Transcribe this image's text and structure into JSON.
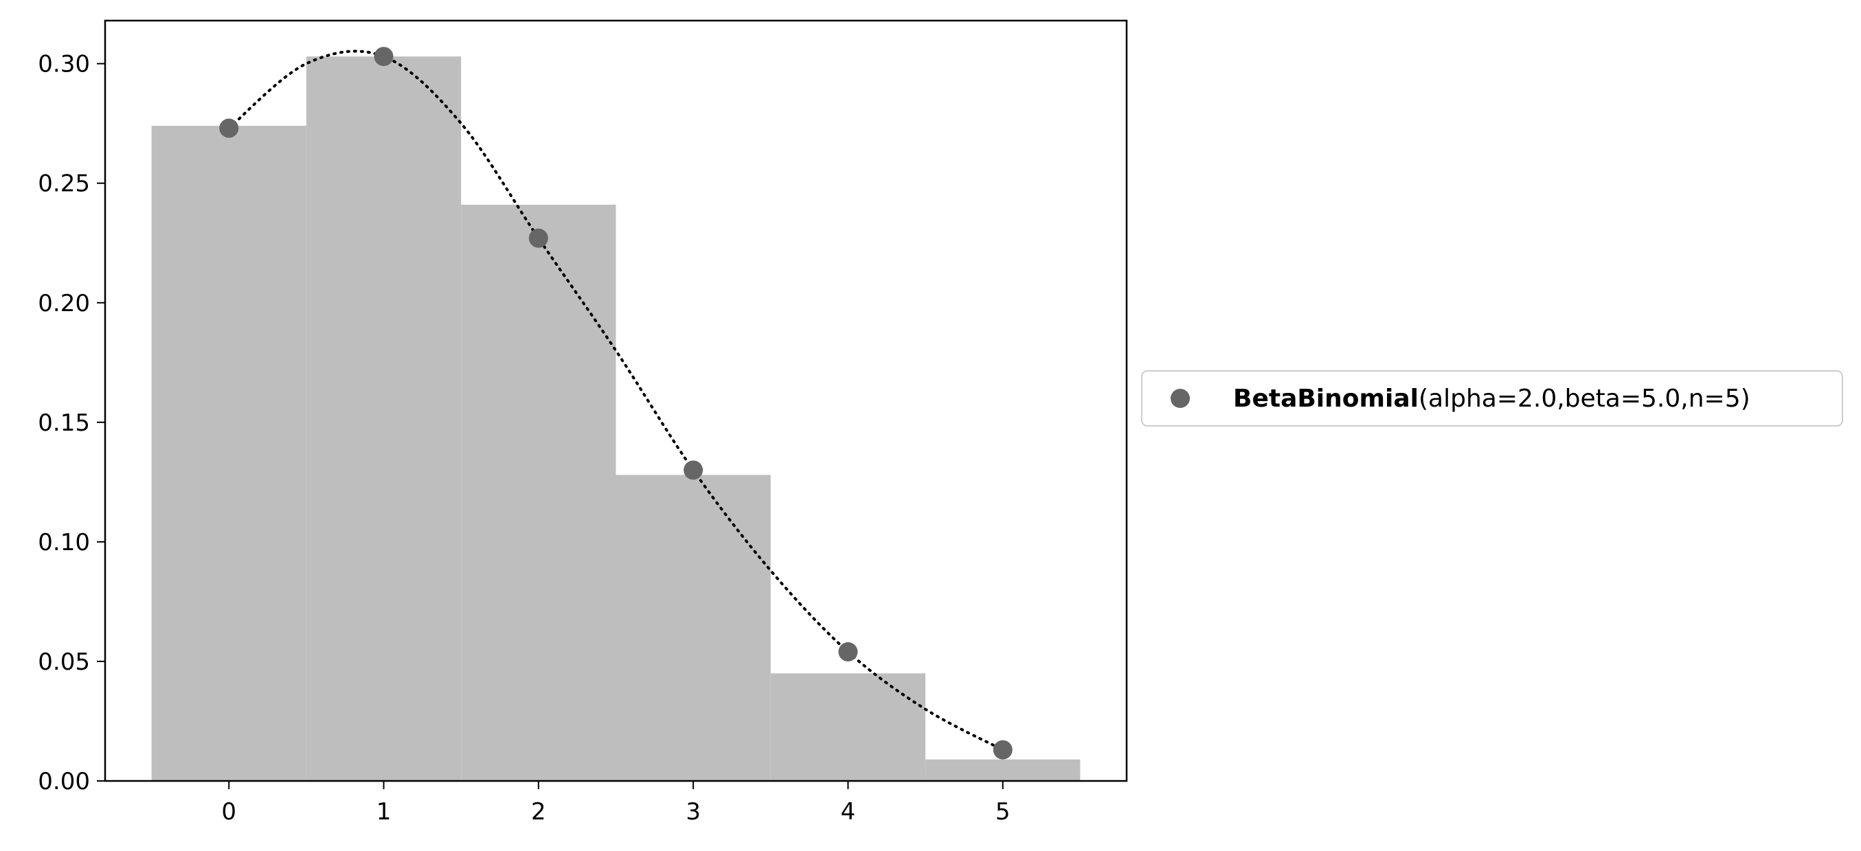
{
  "chart_data": {
    "type": "bar",
    "x": [
      0,
      1,
      2,
      3,
      4,
      5
    ],
    "series": [
      {
        "values": [
          0.274,
          0.303,
          0.241,
          0.128,
          0.045,
          0.009
        ]
      },
      {
        "name": "BetaBinomial(alpha=2.0,beta=5.0,n=5)",
        "type": "scatter",
        "values": [
          0.273,
          0.303,
          0.227,
          0.13,
          0.054,
          0.013
        ]
      }
    ],
    "curve": {
      "style": "dotted",
      "color": "#000000",
      "x": [
        0.0,
        0.5,
        1.0,
        1.5,
        2.0,
        2.5,
        3.0,
        3.5,
        4.0,
        4.5,
        5.0
      ],
      "y": [
        0.273,
        0.3,
        0.303,
        0.275,
        0.227,
        0.18,
        0.13,
        0.088,
        0.054,
        0.03,
        0.013
      ]
    },
    "xlim": [
      -0.8,
      5.8
    ],
    "ylim": [
      0.0,
      0.318
    ],
    "xticks": [
      "0",
      "1",
      "2",
      "3",
      "4",
      "5"
    ],
    "yticks": [
      "0.00",
      "0.05",
      "0.10",
      "0.15",
      "0.20",
      "0.25",
      "0.30"
    ],
    "xlabel": "",
    "ylabel": "",
    "title": "",
    "grid": false,
    "legend": {
      "placement": "right-outside",
      "label_bold": "BetaBinomial",
      "label_rest": "(alpha=2.0,beta=5.0,n=5)"
    },
    "colors": {
      "bar": "#bebebe",
      "marker": "#666666",
      "curve": "#000000",
      "axes": "#000000"
    }
  }
}
